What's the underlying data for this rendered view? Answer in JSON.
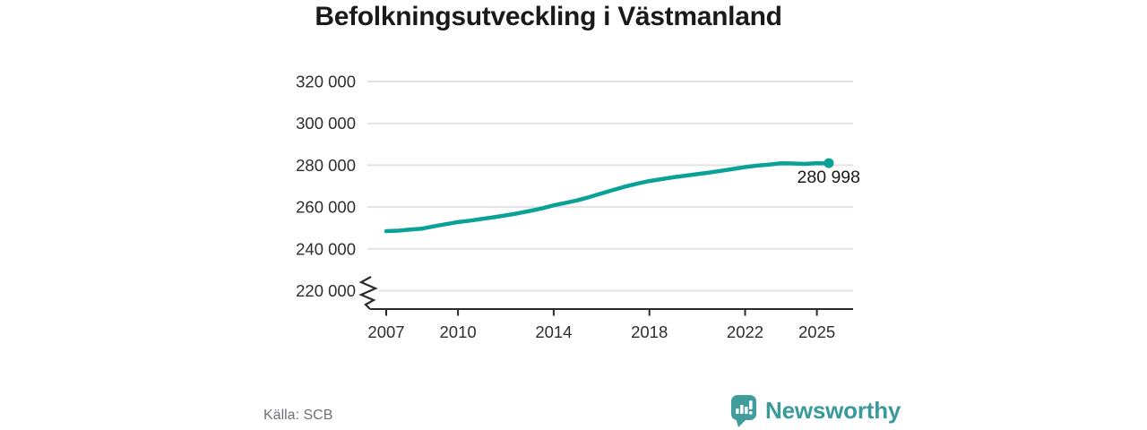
{
  "title": "Befolkningsutveckling i Västmanland",
  "source": "Källa: SCB",
  "brand": {
    "name": "Newsworthy",
    "color": "#399a9c",
    "logo_icon": "speech-bubble-bar-chart"
  },
  "chart_data": {
    "type": "line",
    "title": "Befolkningsutveckling i Västmanland",
    "xlabel": "",
    "ylabel": "",
    "grid": "horizontal",
    "axis_break": true,
    "line_color": "#0aa296",
    "grid_color": "#e3e3e3",
    "axis_color": "#2b2b2b",
    "text_color": "#2e2e2e",
    "ylim": [
      220000,
      320000
    ],
    "xlim": [
      2007,
      2025.5
    ],
    "y_ticks": [
      {
        "label": "220 000",
        "value": 220000
      },
      {
        "label": "240 000",
        "value": 240000
      },
      {
        "label": "260 000",
        "value": 260000
      },
      {
        "label": "280 000",
        "value": 280000
      },
      {
        "label": "300 000",
        "value": 300000
      },
      {
        "label": "320 000",
        "value": 320000
      }
    ],
    "x_ticks": [
      {
        "label": "2007",
        "value": 2007
      },
      {
        "label": "2010",
        "value": 2010
      },
      {
        "label": "2014",
        "value": 2014
      },
      {
        "label": "2018",
        "value": 2018
      },
      {
        "label": "2022",
        "value": 2022
      },
      {
        "label": "2025",
        "value": 2025
      }
    ],
    "end_annotation": "280 998",
    "end_value": 280998,
    "points": [
      {
        "x": 2007.0,
        "y": 248500
      },
      {
        "x": 2007.5,
        "y": 248700
      },
      {
        "x": 2008.0,
        "y": 249200
      },
      {
        "x": 2008.5,
        "y": 249700
      },
      {
        "x": 2009.0,
        "y": 250800
      },
      {
        "x": 2009.5,
        "y": 251800
      },
      {
        "x": 2010.0,
        "y": 252800
      },
      {
        "x": 2010.5,
        "y": 253500
      },
      {
        "x": 2011.0,
        "y": 254300
      },
      {
        "x": 2011.5,
        "y": 255100
      },
      {
        "x": 2012.0,
        "y": 256000
      },
      {
        "x": 2012.5,
        "y": 257000
      },
      {
        "x": 2013.0,
        "y": 258100
      },
      {
        "x": 2013.5,
        "y": 259300
      },
      {
        "x": 2014.0,
        "y": 260800
      },
      {
        "x": 2014.5,
        "y": 262000
      },
      {
        "x": 2015.0,
        "y": 263200
      },
      {
        "x": 2015.5,
        "y": 264800
      },
      {
        "x": 2016.0,
        "y": 266500
      },
      {
        "x": 2016.5,
        "y": 268200
      },
      {
        "x": 2017.0,
        "y": 269800
      },
      {
        "x": 2017.5,
        "y": 271200
      },
      {
        "x": 2018.0,
        "y": 272400
      },
      {
        "x": 2018.5,
        "y": 273300
      },
      {
        "x": 2019.0,
        "y": 274200
      },
      {
        "x": 2019.5,
        "y": 275000
      },
      {
        "x": 2020.0,
        "y": 275700
      },
      {
        "x": 2020.5,
        "y": 276500
      },
      {
        "x": 2021.0,
        "y": 277300
      },
      {
        "x": 2021.5,
        "y": 278200
      },
      {
        "x": 2022.0,
        "y": 279100
      },
      {
        "x": 2022.5,
        "y": 279800
      },
      {
        "x": 2023.0,
        "y": 280300
      },
      {
        "x": 2023.5,
        "y": 280900
      },
      {
        "x": 2024.0,
        "y": 280800
      },
      {
        "x": 2024.5,
        "y": 280600
      },
      {
        "x": 2025.0,
        "y": 281000
      },
      {
        "x": 2025.3,
        "y": 280850
      },
      {
        "x": 2025.5,
        "y": 280998
      }
    ]
  }
}
